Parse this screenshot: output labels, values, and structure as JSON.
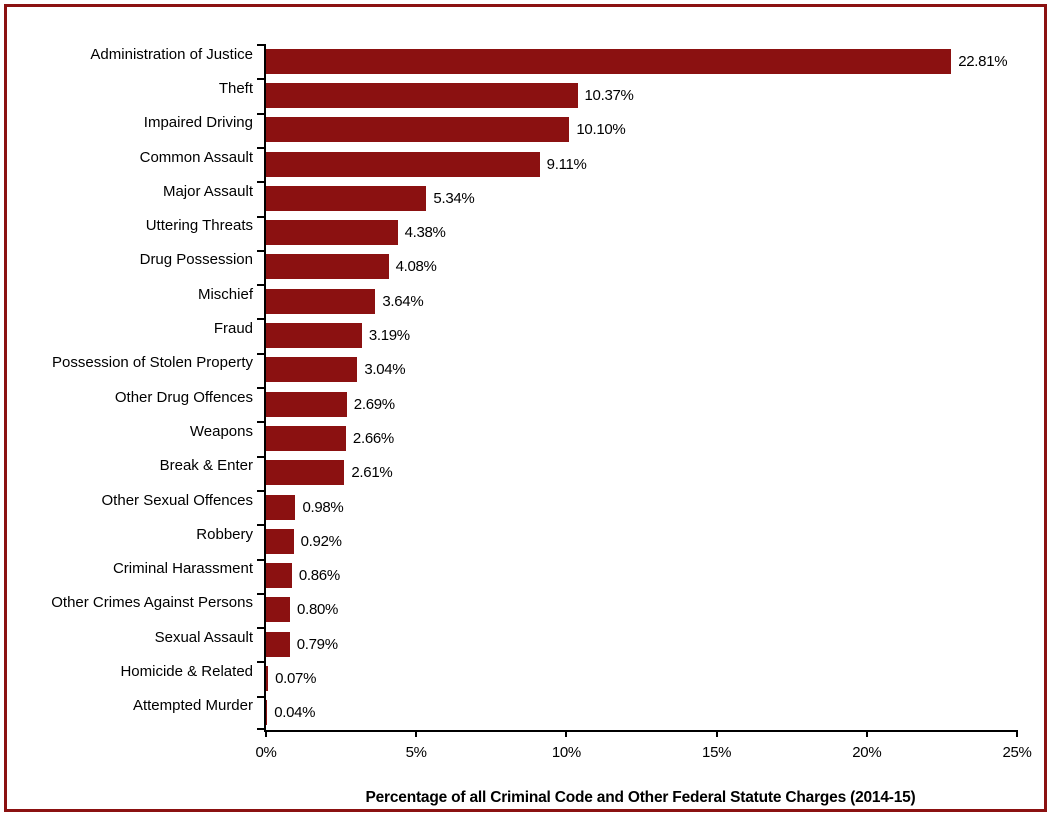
{
  "accent_color": "#8B1111",
  "frame_border_color": "#8B1111",
  "axis_color": "#000000",
  "chart_data": {
    "type": "bar",
    "orientation": "horizontal",
    "title": "",
    "xlabel": "Percentage of all Criminal Code and Other Federal Statute Charges (2014-15)",
    "ylabel": "",
    "xlim": [
      0,
      25
    ],
    "grid": false,
    "legend": false,
    "bar_color": "#8B1111",
    "categories": [
      "Administration of Justice",
      "Theft",
      "Impaired Driving",
      "Common Assault",
      "Major Assault",
      "Uttering Threats",
      "Drug Possession",
      "Mischief",
      "Fraud",
      "Possession of Stolen Property",
      "Other Drug Offences",
      "Weapons",
      "Break & Enter",
      "Other Sexual Offences",
      "Robbery",
      "Criminal Harassment",
      "Other Crimes Against Persons",
      "Sexual Assault",
      "Homicide & Related",
      "Attempted Murder"
    ],
    "values": [
      22.81,
      10.37,
      10.1,
      9.11,
      5.34,
      4.38,
      4.08,
      3.64,
      3.19,
      3.04,
      2.69,
      2.66,
      2.61,
      0.98,
      0.92,
      0.86,
      0.8,
      0.79,
      0.07,
      0.04
    ],
    "value_labels": [
      "22.81%",
      "10.37%",
      "10.10%",
      "9.11%",
      "5.34%",
      "4.38%",
      "4.08%",
      "3.64%",
      "3.19%",
      "3.04%",
      "2.69%",
      "2.66%",
      "2.61%",
      "0.98%",
      "0.92%",
      "0.86%",
      "0.80%",
      "0.79%",
      "0.07%",
      "0.04%"
    ],
    "x_tick_values": [
      0,
      5,
      10,
      15,
      20,
      25
    ],
    "x_tick_labels": [
      "0%",
      "5%",
      "10%",
      "15%",
      "20%",
      "25%"
    ]
  }
}
